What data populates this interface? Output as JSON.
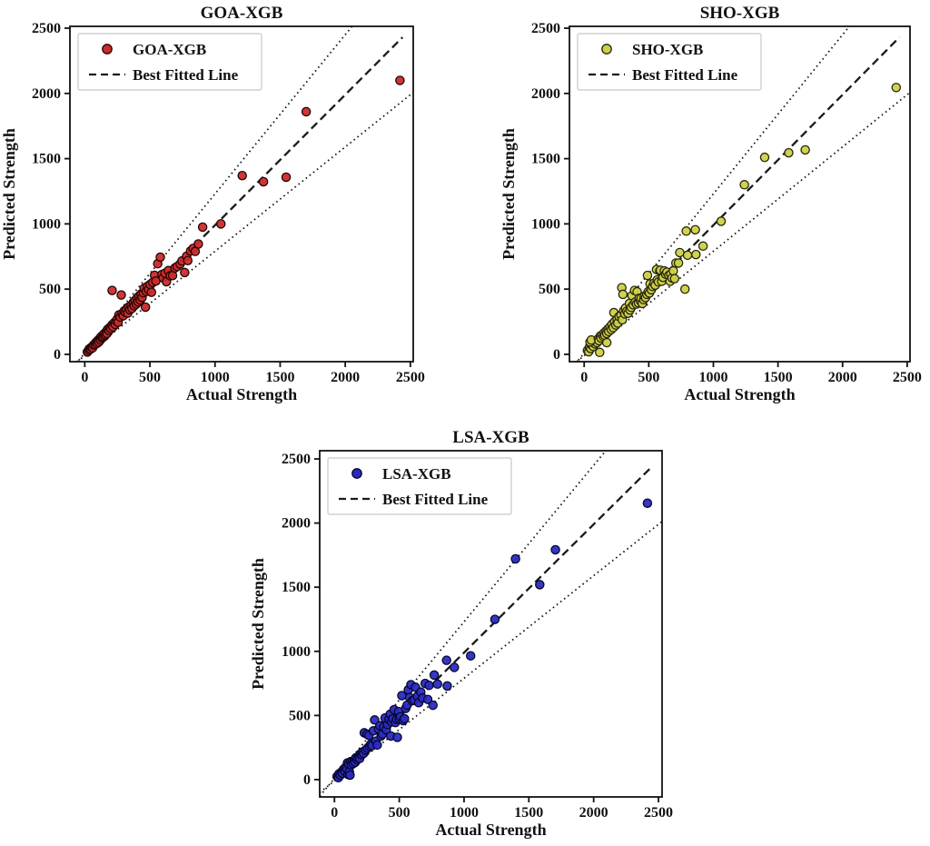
{
  "figure": {
    "background": "#ffffff"
  },
  "chart_data": [
    {
      "type": "scatter",
      "id": "goa-xgb",
      "title": "GOA-XGB",
      "xlabel": "Actual Strength",
      "ylabel": "Predicted Strength",
      "legend": {
        "series_label": "GOA-XGB",
        "line_label": "Best Fitted Line",
        "position": "upper-left"
      },
      "marker_color": "#cc2b2b",
      "marker_edge_color": "#220505",
      "line_color": "#1a1a1a",
      "axis_ticks": [
        0,
        500,
        1000,
        1500,
        2000,
        2500
      ],
      "xlim": [
        -114,
        2522
      ],
      "ylim": [
        -56,
        2514
      ],
      "grid": false,
      "best_fit_line": {
        "slope": 1.0,
        "intercept": -10,
        "x_start": 15,
        "x_end": 2440,
        "style": "dashed"
      },
      "upper_bound_line": {
        "slope": 1.22,
        "intercept": 10,
        "style": "dotted"
      },
      "lower_bound_line": {
        "slope": 0.8,
        "intercept": -10,
        "style": "dotted"
      },
      "points": [
        [
          20,
          18
        ],
        [
          28,
          30
        ],
        [
          35,
          42
        ],
        [
          45,
          40
        ],
        [
          52,
          55
        ],
        [
          60,
          50
        ],
        [
          68,
          72
        ],
        [
          80,
          76
        ],
        [
          86,
          92
        ],
        [
          95,
          85
        ],
        [
          100,
          106
        ],
        [
          108,
          95
        ],
        [
          115,
          122
        ],
        [
          120,
          110
        ],
        [
          126,
          136
        ],
        [
          132,
          124
        ],
        [
          140,
          132
        ],
        [
          146,
          156
        ],
        [
          152,
          140
        ],
        [
          160,
          150
        ],
        [
          166,
          176
        ],
        [
          170,
          160
        ],
        [
          176,
          192
        ],
        [
          186,
          182
        ],
        [
          192,
          206
        ],
        [
          200,
          196
        ],
        [
          210,
          226
        ],
        [
          216,
          210
        ],
        [
          226,
          242
        ],
        [
          234,
          230
        ],
        [
          210,
          490
        ],
        [
          242,
          256
        ],
        [
          250,
          272
        ],
        [
          256,
          246
        ],
        [
          262,
          302
        ],
        [
          272,
          286
        ],
        [
          280,
          455
        ],
        [
          286,
          312
        ],
        [
          296,
          296
        ],
        [
          302,
          332
        ],
        [
          312,
          322
        ],
        [
          320,
          346
        ],
        [
          330,
          316
        ],
        [
          336,
          362
        ],
        [
          346,
          342
        ],
        [
          356,
          376
        ],
        [
          362,
          352
        ],
        [
          372,
          396
        ],
        [
          380,
          372
        ],
        [
          386,
          412
        ],
        [
          396,
          386
        ],
        [
          402,
          432
        ],
        [
          410,
          402
        ],
        [
          416,
          446
        ],
        [
          426,
          416
        ],
        [
          432,
          462
        ],
        [
          440,
          436
        ],
        [
          450,
          472
        ],
        [
          456,
          506
        ],
        [
          466,
          362
        ],
        [
          472,
          482
        ],
        [
          482,
          522
        ],
        [
          490,
          496
        ],
        [
          502,
          536
        ],
        [
          512,
          476
        ],
        [
          522,
          552
        ],
        [
          536,
          606
        ],
        [
          546,
          562
        ],
        [
          560,
          695
        ],
        [
          580,
          745
        ],
        [
          592,
          612
        ],
        [
          602,
          586
        ],
        [
          616,
          622
        ],
        [
          627,
          557
        ],
        [
          642,
          642
        ],
        [
          656,
          602
        ],
        [
          674,
          604
        ],
        [
          692,
          662
        ],
        [
          709,
          673
        ],
        [
          732,
          692
        ],
        [
          746,
          716
        ],
        [
          767,
          627
        ],
        [
          782,
          752
        ],
        [
          791,
          719
        ],
        [
          812,
          792
        ],
        [
          832,
          812
        ],
        [
          848,
          789
        ],
        [
          872,
          846
        ],
        [
          905,
          975
        ],
        [
          1045,
          1000
        ],
        [
          1209,
          1370
        ],
        [
          1372,
          1323
        ],
        [
          1546,
          1358
        ],
        [
          1700,
          1860
        ],
        [
          2420,
          2100
        ]
      ]
    },
    {
      "type": "scatter",
      "id": "sho-xgb",
      "title": "SHO-XGB",
      "xlabel": "Actual Strength",
      "ylabel": "Predicted Strength",
      "legend": {
        "series_label": "SHO-XGB",
        "line_label": "Best Fitted Line",
        "position": "upper-left"
      },
      "marker_color": "#cdd04a",
      "marker_edge_color": "#26260a",
      "line_color": "#1a1a1a",
      "axis_ticks": [
        0,
        500,
        1000,
        1500,
        2000,
        2500
      ],
      "xlim": [
        -114,
        2522
      ],
      "ylim": [
        -56,
        2514
      ],
      "grid": false,
      "best_fit_line": {
        "slope": 1.0,
        "intercept": -10,
        "x_start": 15,
        "x_end": 2440,
        "style": "dashed"
      },
      "upper_bound_line": {
        "slope": 1.22,
        "intercept": 10,
        "style": "dotted"
      },
      "lower_bound_line": {
        "slope": 0.8,
        "intercept": -10,
        "style": "dotted"
      },
      "points": [
        [
          25,
          30
        ],
        [
          35,
          20
        ],
        [
          40,
          55
        ],
        [
          50,
          45
        ],
        [
          60,
          70
        ],
        [
          70,
          60
        ],
        [
          75,
          90
        ],
        [
          85,
          80
        ],
        [
          95,
          100
        ],
        [
          100,
          90
        ],
        [
          45,
          95
        ],
        [
          55,
          110
        ],
        [
          110,
          120
        ],
        [
          115,
          105
        ],
        [
          120,
          15
        ],
        [
          125,
          140
        ],
        [
          130,
          125
        ],
        [
          140,
          150
        ],
        [
          150,
          135
        ],
        [
          155,
          165
        ],
        [
          160,
          145
        ],
        [
          170,
          180
        ],
        [
          175,
          160
        ],
        [
          185,
          195
        ],
        [
          190,
          175
        ],
        [
          175,
          90
        ],
        [
          200,
          210
        ],
        [
          210,
          190
        ],
        [
          215,
          230
        ],
        [
          225,
          205
        ],
        [
          230,
          320
        ],
        [
          235,
          250
        ],
        [
          245,
          225
        ],
        [
          255,
          270
        ],
        [
          260,
          240
        ],
        [
          270,
          290
        ],
        [
          291,
          511
        ],
        [
          285,
          300
        ],
        [
          295,
          265
        ],
        [
          300,
          460
        ],
        [
          305,
          330
        ],
        [
          315,
          310
        ],
        [
          320,
          355
        ],
        [
          330,
          330
        ],
        [
          340,
          315
        ],
        [
          350,
          390
        ],
        [
          355,
          340
        ],
        [
          365,
          360
        ],
        [
          370,
          450
        ],
        [
          380,
          380
        ],
        [
          390,
          490
        ],
        [
          395,
          400
        ],
        [
          405,
          385
        ],
        [
          410,
          480
        ],
        [
          420,
          395
        ],
        [
          425,
          430
        ],
        [
          435,
          410
        ],
        [
          440,
          430
        ],
        [
          450,
          390
        ],
        [
          460,
          420
        ],
        [
          465,
          445
        ],
        [
          475,
          435
        ],
        [
          490,
          605
        ],
        [
          485,
          460
        ],
        [
          495,
          480
        ],
        [
          505,
          470
        ],
        [
          510,
          540
        ],
        [
          520,
          495
        ],
        [
          530,
          520
        ],
        [
          540,
          545
        ],
        [
          550,
          530
        ],
        [
          560,
          650
        ],
        [
          565,
          570
        ],
        [
          575,
          555
        ],
        [
          585,
          640
        ],
        [
          590,
          645
        ],
        [
          600,
          560
        ],
        [
          610,
          590
        ],
        [
          620,
          640
        ],
        [
          630,
          615
        ],
        [
          640,
          630
        ],
        [
          655,
          605
        ],
        [
          665,
          560
        ],
        [
          670,
          615
        ],
        [
          680,
          585
        ],
        [
          690,
          640
        ],
        [
          700,
          580
        ],
        [
          710,
          700
        ],
        [
          730,
          700
        ],
        [
          740,
          780
        ],
        [
          780,
          500
        ],
        [
          790,
          945
        ],
        [
          800,
          760
        ],
        [
          860,
          955
        ],
        [
          865,
          765
        ],
        [
          920,
          830
        ],
        [
          1060,
          1020
        ],
        [
          1240,
          1300
        ],
        [
          1397,
          1510
        ],
        [
          1583,
          1545
        ],
        [
          1711,
          1567
        ],
        [
          2415,
          2045
        ]
      ]
    },
    {
      "type": "scatter",
      "id": "lsa-xgb",
      "title": "LSA-XGB",
      "xlabel": "Actual Strength",
      "ylabel": "Predicted Strength",
      "legend": {
        "series_label": "LSA-XGB",
        "line_label": "Best Fitted Line",
        "position": "upper-left"
      },
      "marker_color": "#2b2bc0",
      "marker_edge_color": "#07072e",
      "line_color": "#1a1a1a",
      "axis_ticks": [
        0,
        500,
        1000,
        1500,
        2000,
        2500
      ],
      "xlim": [
        -114,
        2528
      ],
      "ylim": [
        -135,
        2564
      ],
      "grid": false,
      "best_fit_line": {
        "slope": 1.0,
        "intercept": -10,
        "x_start": 15,
        "x_end": 2440,
        "style": "dashed"
      },
      "upper_bound_line": {
        "slope": 1.22,
        "intercept": 10,
        "style": "dotted"
      },
      "lower_bound_line": {
        "slope": 0.8,
        "intercept": -10,
        "style": "dotted"
      },
      "points": [
        [
          20,
          25
        ],
        [
          30,
          15
        ],
        [
          35,
          45
        ],
        [
          45,
          35
        ],
        [
          55,
          60
        ],
        [
          60,
          50
        ],
        [
          70,
          80
        ],
        [
          80,
          65
        ],
        [
          85,
          95
        ],
        [
          95,
          85
        ],
        [
          100,
          130
        ],
        [
          105,
          40
        ],
        [
          110,
          120
        ],
        [
          115,
          60
        ],
        [
          120,
          35
        ],
        [
          125,
          140
        ],
        [
          130,
          115
        ],
        [
          140,
          140
        ],
        [
          145,
          125
        ],
        [
          155,
          150
        ],
        [
          160,
          135
        ],
        [
          165,
          170
        ],
        [
          175,
          155
        ],
        [
          180,
          170
        ],
        [
          190,
          185
        ],
        [
          195,
          165
        ],
        [
          200,
          200
        ],
        [
          210,
          195
        ],
        [
          215,
          215
        ],
        [
          225,
          205
        ],
        [
          230,
          365
        ],
        [
          240,
          230
        ],
        [
          250,
          355
        ],
        [
          255,
          245
        ],
        [
          265,
          345
        ],
        [
          270,
          260
        ],
        [
          280,
          275
        ],
        [
          290,
          265
        ],
        [
          300,
          380
        ],
        [
          310,
          465
        ],
        [
          320,
          300
        ],
        [
          330,
          270
        ],
        [
          340,
          395
        ],
        [
          350,
          420
        ],
        [
          360,
          340
        ],
        [
          370,
          355
        ],
        [
          380,
          410
        ],
        [
          390,
          480
        ],
        [
          400,
          390
        ],
        [
          410,
          430
        ],
        [
          420,
          470
        ],
        [
          430,
          510
        ],
        [
          435,
          340
        ],
        [
          440,
          450
        ],
        [
          450,
          475
        ],
        [
          460,
          545
        ],
        [
          470,
          445
        ],
        [
          480,
          470
        ],
        [
          485,
          330
        ],
        [
          495,
          530
        ],
        [
          500,
          475
        ],
        [
          510,
          490
        ],
        [
          520,
          655
        ],
        [
          530,
          460
        ],
        [
          540,
          475
        ],
        [
          550,
          555
        ],
        [
          560,
          580
        ],
        [
          570,
          700
        ],
        [
          580,
          640
        ],
        [
          590,
          740
        ],
        [
          600,
          615
        ],
        [
          615,
          620
        ],
        [
          625,
          720
        ],
        [
          640,
          650
        ],
        [
          650,
          600
        ],
        [
          666,
          682
        ],
        [
          680,
          635
        ],
        [
          700,
          750
        ],
        [
          720,
          625
        ],
        [
          730,
          735
        ],
        [
          760,
          580
        ],
        [
          770,
          815
        ],
        [
          795,
          745
        ],
        [
          870,
          730
        ],
        [
          865,
          930
        ],
        [
          925,
          875
        ],
        [
          1051,
          965
        ],
        [
          1238,
          1249
        ],
        [
          1397,
          1721
        ],
        [
          1584,
          1520
        ],
        [
          1705,
          1792
        ],
        [
          2415,
          2155
        ]
      ]
    }
  ]
}
